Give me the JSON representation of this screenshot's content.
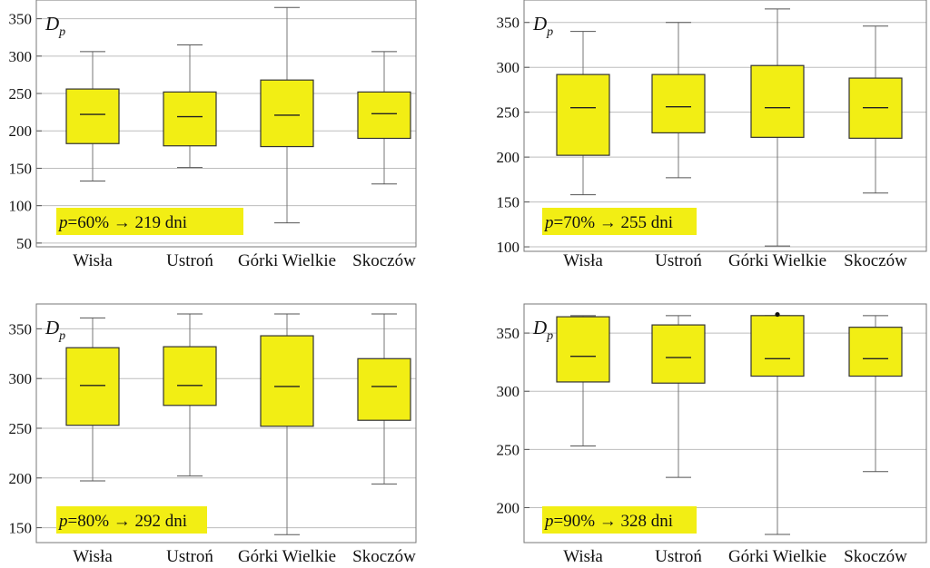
{
  "chart_data": [
    {
      "type": "boxplot",
      "title": "",
      "ylabel": "D",
      "ylabel_sub": "p",
      "annotation": {
        "var": "p",
        "text": "=60% → 219 dni"
      },
      "categories": [
        "Wisła",
        "Ustroń",
        "Górki Wielkie",
        "Skoczów"
      ],
      "ylim": [
        45,
        375
      ],
      "yticks": [
        50,
        100,
        150,
        200,
        250,
        300,
        350
      ],
      "grid": true,
      "box_color": "#f2ee14",
      "boxes": [
        {
          "min": 133,
          "q1": 183,
          "median": 222,
          "q3": 256,
          "max": 306
        },
        {
          "min": 151,
          "q1": 180,
          "median": 219,
          "q3": 252,
          "max": 315
        },
        {
          "min": 77,
          "q1": 179,
          "median": 221,
          "q3": 268,
          "max": 365
        },
        {
          "min": 129,
          "q1": 190,
          "median": 223,
          "q3": 252,
          "max": 306
        }
      ],
      "outliers": []
    },
    {
      "type": "boxplot",
      "title": "",
      "ylabel": "D",
      "ylabel_sub": "p",
      "annotation": {
        "var": "p",
        "text": "=70% → 255 dni"
      },
      "categories": [
        "Wisła",
        "Ustroń",
        "Górki Wielkie",
        "Skoczów"
      ],
      "ylim": [
        95,
        375
      ],
      "yticks": [
        100,
        150,
        200,
        250,
        300,
        350
      ],
      "grid": true,
      "box_color": "#f2ee14",
      "boxes": [
        {
          "min": 158,
          "q1": 202,
          "median": 255,
          "q3": 292,
          "max": 340
        },
        {
          "min": 177,
          "q1": 227,
          "median": 256,
          "q3": 292,
          "max": 350
        },
        {
          "min": 101,
          "q1": 222,
          "median": 255,
          "q3": 302,
          "max": 365
        },
        {
          "min": 160,
          "q1": 221,
          "median": 255,
          "q3": 288,
          "max": 346
        }
      ],
      "outliers": []
    },
    {
      "type": "boxplot",
      "title": "",
      "ylabel": "D",
      "ylabel_sub": "p",
      "annotation": {
        "var": "p",
        "text": "=80% → 292 dni"
      },
      "categories": [
        "Wisła",
        "Ustroń",
        "Górki Wielkie",
        "Skoczów"
      ],
      "ylim": [
        135,
        375
      ],
      "yticks": [
        150,
        200,
        250,
        300,
        350
      ],
      "grid": true,
      "box_color": "#f2ee14",
      "boxes": [
        {
          "min": 197,
          "q1": 253,
          "median": 293,
          "q3": 331,
          "max": 361
        },
        {
          "min": 202,
          "q1": 273,
          "median": 293,
          "q3": 332,
          "max": 365
        },
        {
          "min": 143,
          "q1": 252,
          "median": 292,
          "q3": 343,
          "max": 365
        },
        {
          "min": 194,
          "q1": 258,
          "median": 292,
          "q3": 320,
          "max": 365
        }
      ],
      "outliers": []
    },
    {
      "type": "boxplot",
      "title": "",
      "ylabel": "D",
      "ylabel_sub": "p",
      "annotation": {
        "var": "p",
        "text": "=90% → 328 dni"
      },
      "categories": [
        "Wisła",
        "Ustroń",
        "Górki Wielkie",
        "Skoczów"
      ],
      "ylim": [
        170,
        375
      ],
      "yticks": [
        200,
        250,
        300,
        350
      ],
      "grid": true,
      "box_color": "#f2ee14",
      "boxes": [
        {
          "min": 253,
          "q1": 308,
          "median": 330,
          "q3": 364,
          "max": 365
        },
        {
          "min": 226,
          "q1": 307,
          "median": 329,
          "q3": 357,
          "max": 365
        },
        {
          "min": 177,
          "q1": 313,
          "median": 328,
          "q3": 365,
          "max": 365
        },
        {
          "min": 231,
          "q1": 313,
          "median": 328,
          "q3": 355,
          "max": 365
        }
      ],
      "outliers": [
        {
          "category": "Górki Wielkie",
          "value": 366
        }
      ]
    }
  ]
}
